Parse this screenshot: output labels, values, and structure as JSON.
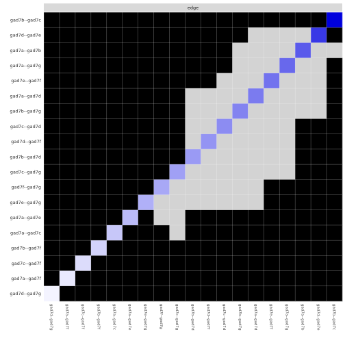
{
  "chart_data": {
    "type": "heatmap",
    "facet_label": "edge",
    "rows": [
      "gad7b--gad7c",
      "gad7d--gad7e",
      "gad7a--gad7b",
      "gad7a--gad7g",
      "gad7e--gad7f",
      "gad7a--gad7d",
      "gad7b--gad7g",
      "gad7c--gad7d",
      "gad7d--gad7f",
      "gad7b--gad7d",
      "gad7c--gad7g",
      "gad7f--gad7g",
      "gad7e--gad7g",
      "gad7a--gad7e",
      "gad7a--gad7c",
      "gad7b--gad7f",
      "gad7c--gad7f",
      "gad7a--gad7f",
      "gad7d--gad7g"
    ],
    "columns": [
      "gad7d--gad7g",
      "gad7a--gad7f",
      "gad7c--gad7f",
      "gad7b--gad7f",
      "gad7a--gad7c",
      "gad7a--gad7e",
      "gad7e--gad7g",
      "gad7f--gad7g",
      "gad7c--gad7g",
      "gad7b--gad7d",
      "gad7d--gad7f",
      "gad7c--gad7d",
      "gad7b--gad7g",
      "gad7a--gad7d",
      "gad7e--gad7f",
      "gad7a--gad7g",
      "gad7a--gad7b",
      "gad7d--gad7e",
      "gad7b--gad7c"
    ],
    "black_from_left": [
      19,
      13,
      12,
      12,
      11,
      9,
      9,
      9,
      9,
      9,
      8,
      7,
      7,
      7,
      8,
      8,
      8,
      8,
      9
    ],
    "black_from_right": [
      0,
      1,
      0,
      1,
      1,
      1,
      1,
      3,
      3,
      3,
      3,
      5,
      5,
      10,
      10,
      11,
      11,
      13,
      13
    ],
    "diagonal_colors": [
      "#f4f4ff",
      "#e9e9fe",
      "#dcdcfb",
      "#d3d3fb",
      "#c7c7f9",
      "#bbbbf8",
      "#b0b0f8",
      "#a8a8f6",
      "#a0a0f5",
      "#9a9af4",
      "#9494f3",
      "#8c8cf2",
      "#8383f0",
      "#7b7bef",
      "#7272ee",
      "#6868ec",
      "#5a5aeb",
      "#3838e6",
      "#0000dd"
    ],
    "colors": {
      "black": "#000000",
      "gray": "#d3d3d3",
      "panel": "#ebebeb",
      "grid": "#ffffff",
      "strip": "#d9d9d9"
    },
    "grid": true
  }
}
